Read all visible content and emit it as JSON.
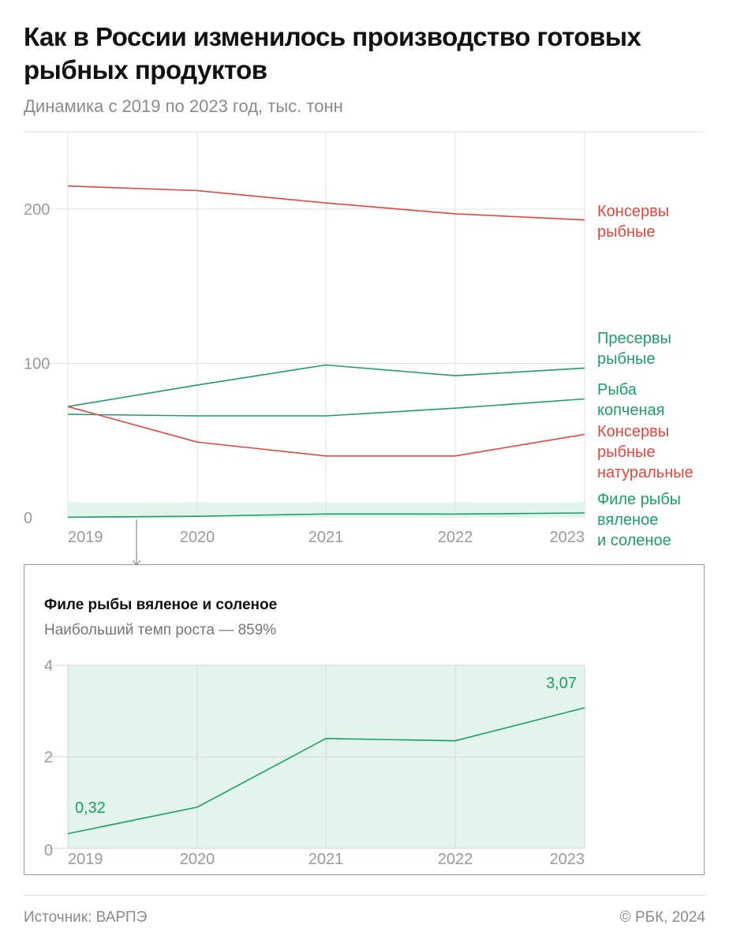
{
  "title": "Как в России изменилось производство готовых рыбных продуктов",
  "subtitle": "Динамика с 2019 по 2023 год, тыс. тонн",
  "colors": {
    "red": "#e5453f",
    "green": "#1a9e6a",
    "band": "#e3f4ec",
    "grid": "#e2e2e2"
  },
  "chart_data": [
    {
      "type": "line",
      "title": "Как в России изменилось производство готовых рыбных продуктов",
      "ylabel": "тыс. тонн",
      "x": [
        "2019",
        "2020",
        "2021",
        "2022",
        "2023"
      ],
      "yticks": [
        "0",
        "100",
        "200"
      ],
      "ylim": [
        0,
        250
      ],
      "grid": true,
      "series": [
        {
          "name": [
            "Консервы",
            "рыбные"
          ],
          "color": "red",
          "values": [
            215,
            212,
            204,
            197,
            193
          ]
        },
        {
          "name": [
            "Пресервы",
            "рыбные"
          ],
          "color": "green",
          "values": [
            72,
            86,
            99,
            92,
            97
          ]
        },
        {
          "name": [
            "Рыба",
            "копченая"
          ],
          "color": "green",
          "values": [
            67,
            66,
            66,
            71,
            77
          ]
        },
        {
          "name": [
            "Консервы",
            "рыбные",
            "натуральные"
          ],
          "color": "red",
          "values": [
            72,
            49,
            40,
            40,
            54
          ]
        },
        {
          "name": [
            "Филе рыбы",
            "вяленое",
            "и соленое"
          ],
          "color": "green",
          "values": [
            0.32,
            0.9,
            2.4,
            2.35,
            3.07
          ]
        }
      ]
    },
    {
      "type": "line",
      "title": "Филе рыбы вяленое и соленое",
      "subtitle": "Наибольший темп роста — 859%",
      "x": [
        "2019",
        "2020",
        "2021",
        "2022",
        "2023"
      ],
      "yticks": [
        "0",
        "2",
        "4"
      ],
      "ylim": [
        0,
        4
      ],
      "grid": true,
      "series": [
        {
          "name": "Филе рыбы вяленое и соленое",
          "color": "green",
          "values": [
            0.32,
            0.9,
            2.4,
            2.35,
            3.07
          ]
        }
      ],
      "data_labels": [
        "0,32",
        "",
        "",
        "",
        "3,07"
      ]
    }
  ],
  "footer": {
    "source": "Источник: ВАРПЭ",
    "copyright": "© РБК, 2024"
  }
}
